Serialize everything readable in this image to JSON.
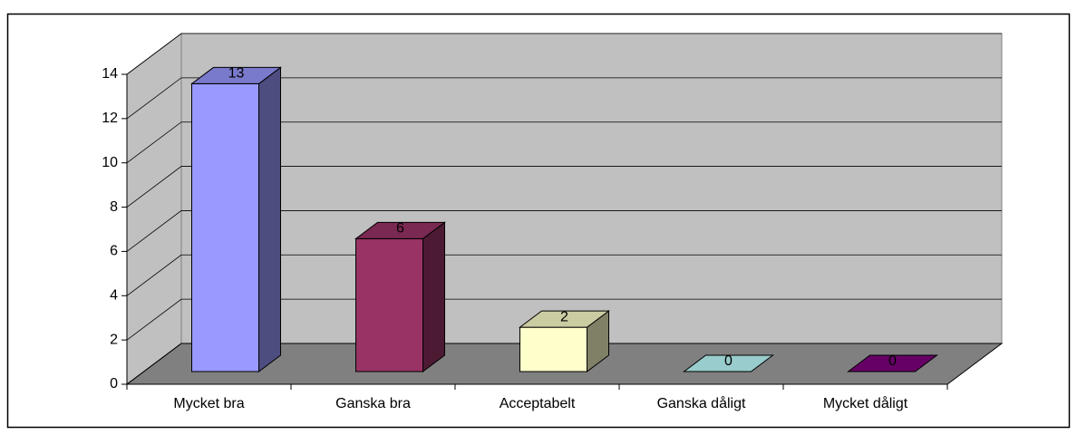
{
  "chart_data": {
    "type": "bar3d",
    "categories": [
      "Mycket bra",
      "Ganska bra",
      "Acceptabelt",
      "Ganska dåligt",
      "Mycket dåligt"
    ],
    "values": [
      13,
      6,
      2,
      0,
      0
    ],
    "colors": [
      "#9999ff",
      "#993366",
      "#ffffcc",
      "#99cccc",
      "#660066"
    ],
    "ylim": [
      0,
      14
    ],
    "yticks": [
      0,
      2,
      4,
      6,
      8,
      10,
      12,
      14
    ],
    "grid": true
  }
}
